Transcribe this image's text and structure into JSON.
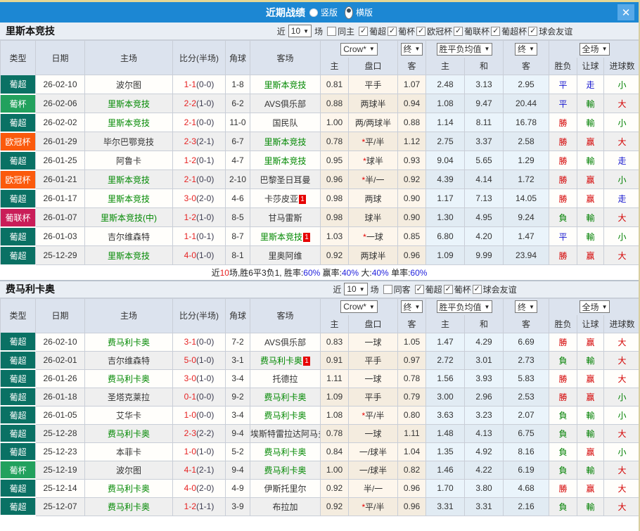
{
  "titlebar": {
    "title": "近期战绩",
    "radios": [
      {
        "label": "竖版",
        "selected": false
      },
      {
        "label": "横版",
        "selected": true
      }
    ],
    "close": "✕"
  },
  "filter_common": {
    "near": "近",
    "games": "10",
    "suffix": "场"
  },
  "columns": {
    "left": [
      "类型",
      "日期",
      "主场",
      "比分(半场)",
      "角球",
      "客场"
    ],
    "sub": [
      "主",
      "盘口",
      "客",
      "主",
      "和",
      "客",
      "胜负",
      "让球",
      "进球数"
    ],
    "selects": {
      "crow": "Crow*",
      "fin1": "终",
      "avg": "胜平负均值",
      "fin2": "终",
      "scope": "全场"
    }
  },
  "type_colors": {
    "葡超": "#0a7164",
    "葡杯": "#22a15d",
    "欧冠杯": "#fb5a0c",
    "葡联杯": "#c91d58"
  },
  "teams": [
    {
      "name": "里斯本竞技",
      "same_side": "同主",
      "leagues": [
        "葡超",
        "葡杯",
        "欧冠杯",
        "葡联杯",
        "葡超杯",
        "球会友谊"
      ],
      "rows": [
        {
          "type": "葡超",
          "date": "26-02-10",
          "home": "波尔图",
          "home_green": false,
          "score": "1-1",
          "half": "(0-0)",
          "corner": "1-8",
          "away": "里斯本竞技",
          "away_green": true,
          "away_badge": "",
          "h_home": "0.81",
          "star": "",
          "handicap": "平手",
          "h_away": "1.07",
          "e_home": "2.48",
          "e_draw": "3.13",
          "e_away": "2.95",
          "r1": "平",
          "r1c": "b",
          "r2": "走",
          "r2c": "b",
          "r3": "小",
          "r3c": "g"
        },
        {
          "type": "葡杯",
          "date": "26-02-06",
          "home": "里斯本竞技",
          "home_green": true,
          "score": "2-2",
          "half": "(1-0)",
          "corner": "6-2",
          "away": "AVS俱乐部",
          "away_green": false,
          "away_badge": "",
          "h_home": "0.88",
          "star": "",
          "handicap": "两球半",
          "h_away": "0.94",
          "e_home": "1.08",
          "e_draw": "9.47",
          "e_away": "20.44",
          "r1": "平",
          "r1c": "b",
          "r2": "輸",
          "r2c": "g",
          "r3": "大",
          "r3c": "r"
        },
        {
          "type": "葡超",
          "date": "26-02-02",
          "home": "里斯本竞技",
          "home_green": true,
          "score": "2-1",
          "half": "(0-0)",
          "corner": "11-0",
          "away": "国民队",
          "away_green": false,
          "away_badge": "",
          "h_home": "1.00",
          "star": "",
          "handicap": "两/两球半",
          "h_away": "0.88",
          "e_home": "1.14",
          "e_draw": "8.11",
          "e_away": "16.78",
          "r1": "勝",
          "r1c": "r",
          "r2": "輸",
          "r2c": "g",
          "r3": "小",
          "r3c": "g"
        },
        {
          "type": "欧冠杯",
          "date": "26-01-29",
          "home": "毕尔巴鄂竞技",
          "home_green": false,
          "score": "2-3",
          "half": "(2-1)",
          "corner": "6-7",
          "away": "里斯本竞技",
          "away_green": true,
          "away_badge": "",
          "h_home": "0.78",
          "star": "*",
          "handicap": "平/半",
          "h_away": "1.12",
          "e_home": "2.75",
          "e_draw": "3.37",
          "e_away": "2.58",
          "r1": "勝",
          "r1c": "r",
          "r2": "赢",
          "r2c": "r",
          "r3": "大",
          "r3c": "r"
        },
        {
          "type": "葡超",
          "date": "26-01-25",
          "home": "阿鲁卡",
          "home_green": false,
          "score": "1-2",
          "half": "(0-1)",
          "corner": "4-7",
          "away": "里斯本竞技",
          "away_green": true,
          "away_badge": "",
          "h_home": "0.95",
          "star": "*",
          "handicap": "球半",
          "h_away": "0.93",
          "e_home": "9.04",
          "e_draw": "5.65",
          "e_away": "1.29",
          "r1": "勝",
          "r1c": "r",
          "r2": "輸",
          "r2c": "g",
          "r3": "走",
          "r3c": "b"
        },
        {
          "type": "欧冠杯",
          "date": "26-01-21",
          "home": "里斯本竞技",
          "home_green": true,
          "score": "2-1",
          "half": "(0-0)",
          "corner": "2-10",
          "away": "巴黎圣日耳曼",
          "away_green": false,
          "away_badge": "",
          "h_home": "0.96",
          "star": "*",
          "handicap": "半/一",
          "h_away": "0.92",
          "e_home": "4.39",
          "e_draw": "4.14",
          "e_away": "1.72",
          "r1": "勝",
          "r1c": "r",
          "r2": "赢",
          "r2c": "r",
          "r3": "小",
          "r3c": "g"
        },
        {
          "type": "葡超",
          "date": "26-01-17",
          "home": "里斯本竞技",
          "home_green": true,
          "score": "3-0",
          "half": "(2-0)",
          "corner": "4-6",
          "away": "卡莎皮亚",
          "away_green": false,
          "away_badge": "1",
          "h_home": "0.98",
          "star": "",
          "handicap": "两球",
          "h_away": "0.90",
          "e_home": "1.17",
          "e_draw": "7.13",
          "e_away": "14.05",
          "r1": "勝",
          "r1c": "r",
          "r2": "赢",
          "r2c": "r",
          "r3": "走",
          "r3c": "b"
        },
        {
          "type": "葡联杯",
          "date": "26-01-07",
          "home": "里斯本竞技(中)",
          "home_green": true,
          "score": "1-2",
          "half": "(1-0)",
          "corner": "8-5",
          "away": "甘马雷斯",
          "away_green": false,
          "away_badge": "",
          "h_home": "0.98",
          "star": "",
          "handicap": "球半",
          "h_away": "0.90",
          "e_home": "1.30",
          "e_draw": "4.95",
          "e_away": "9.24",
          "r1": "負",
          "r1c": "g",
          "r2": "輸",
          "r2c": "g",
          "r3": "大",
          "r3c": "r"
        },
        {
          "type": "葡超",
          "date": "26-01-03",
          "home": "吉尔维森特",
          "home_green": false,
          "score": "1-1",
          "half": "(0-1)",
          "corner": "8-7",
          "away": "里斯本竞技",
          "away_green": true,
          "away_badge": "1",
          "h_home": "1.03",
          "star": "*",
          "handicap": "一球",
          "h_away": "0.85",
          "e_home": "6.80",
          "e_draw": "4.20",
          "e_away": "1.47",
          "r1": "平",
          "r1c": "b",
          "r2": "輸",
          "r2c": "g",
          "r3": "小",
          "r3c": "g"
        },
        {
          "type": "葡超",
          "date": "25-12-29",
          "home": "里斯本竞技",
          "home_green": true,
          "score": "4-0",
          "half": "(1-0)",
          "corner": "8-1",
          "away": "里奥阿维",
          "away_green": false,
          "away_badge": "",
          "h_home": "0.92",
          "star": "",
          "handicap": "两球半",
          "h_away": "0.96",
          "e_home": "1.09",
          "e_draw": "9.99",
          "e_away": "23.94",
          "r1": "勝",
          "r1c": "r",
          "r2": "赢",
          "r2c": "r",
          "r3": "大",
          "r3c": "r"
        }
      ],
      "summary": [
        {
          "t": "近",
          "c": "k"
        },
        {
          "t": "10",
          "c": "r"
        },
        {
          "t": "场,胜6平3负1, 胜率:",
          "c": "k"
        },
        {
          "t": "60%",
          "c": "b"
        },
        {
          "t": " 赢率:",
          "c": "k"
        },
        {
          "t": "40%",
          "c": "b"
        },
        {
          "t": " 大:",
          "c": "k"
        },
        {
          "t": "40%",
          "c": "b"
        },
        {
          "t": " 单率:",
          "c": "k"
        },
        {
          "t": "60%",
          "c": "b"
        }
      ]
    },
    {
      "name": "费马利卡奥",
      "same_side": "同客",
      "leagues": [
        "葡超",
        "葡杯",
        "球会友谊"
      ],
      "rows": [
        {
          "type": "葡超",
          "date": "26-02-10",
          "home": "费马利卡奥",
          "home_green": true,
          "score": "3-1",
          "half": "(0-0)",
          "corner": "7-2",
          "away": "AVS俱乐部",
          "away_green": false,
          "away_badge": "",
          "h_home": "0.83",
          "star": "",
          "handicap": "一球",
          "h_away": "1.05",
          "e_home": "1.47",
          "e_draw": "4.29",
          "e_away": "6.69",
          "r1": "勝",
          "r1c": "r",
          "r2": "赢",
          "r2c": "r",
          "r3": "大",
          "r3c": "r"
        },
        {
          "type": "葡超",
          "date": "26-02-01",
          "home": "吉尔维森特",
          "home_green": false,
          "score": "5-0",
          "half": "(1-0)",
          "corner": "3-1",
          "away": "费马利卡奥",
          "away_green": true,
          "away_badge": "1",
          "h_home": "0.91",
          "star": "",
          "handicap": "平手",
          "h_away": "0.97",
          "e_home": "2.72",
          "e_draw": "3.01",
          "e_away": "2.73",
          "r1": "負",
          "r1c": "g",
          "r2": "輸",
          "r2c": "g",
          "r3": "大",
          "r3c": "r"
        },
        {
          "type": "葡超",
          "date": "26-01-26",
          "home": "费马利卡奥",
          "home_green": true,
          "score": "3-0",
          "half": "(1-0)",
          "corner": "3-4",
          "away": "托德拉",
          "away_green": false,
          "away_badge": "",
          "h_home": "1.11",
          "star": "",
          "handicap": "一球",
          "h_away": "0.78",
          "e_home": "1.56",
          "e_draw": "3.93",
          "e_away": "5.83",
          "r1": "勝",
          "r1c": "r",
          "r2": "赢",
          "r2c": "r",
          "r3": "大",
          "r3c": "r"
        },
        {
          "type": "葡超",
          "date": "26-01-18",
          "home": "圣塔克莱拉",
          "home_green": false,
          "score": "0-1",
          "half": "(0-0)",
          "corner": "9-2",
          "away": "费马利卡奥",
          "away_green": true,
          "away_badge": "",
          "h_home": "1.09",
          "star": "",
          "handicap": "平手",
          "h_away": "0.79",
          "e_home": "3.00",
          "e_draw": "2.96",
          "e_away": "2.53",
          "r1": "勝",
          "r1c": "r",
          "r2": "赢",
          "r2c": "r",
          "r3": "小",
          "r3c": "g"
        },
        {
          "type": "葡超",
          "date": "26-01-05",
          "home": "艾华卡",
          "home_green": false,
          "score": "1-0",
          "half": "(0-0)",
          "corner": "3-4",
          "away": "费马利卡奥",
          "away_green": true,
          "away_badge": "",
          "h_home": "1.08",
          "star": "*",
          "handicap": "平/半",
          "h_away": "0.80",
          "e_home": "3.63",
          "e_draw": "3.23",
          "e_away": "2.07",
          "r1": "負",
          "r1c": "g",
          "r2": "輸",
          "r2c": "g",
          "r3": "小",
          "r3c": "g"
        },
        {
          "type": "葡超",
          "date": "25-12-28",
          "home": "费马利卡奥",
          "home_green": true,
          "score": "2-3",
          "half": "(2-2)",
          "corner": "9-4",
          "away": "埃斯特雷拉达阿马多拉",
          "away_green": false,
          "away_badge": "",
          "h_home": "0.78",
          "star": "",
          "handicap": "一球",
          "h_away": "1.11",
          "e_home": "1.48",
          "e_draw": "4.13",
          "e_away": "6.75",
          "r1": "負",
          "r1c": "g",
          "r2": "輸",
          "r2c": "g",
          "r3": "大",
          "r3c": "r"
        },
        {
          "type": "葡超",
          "date": "25-12-23",
          "home": "本菲卡",
          "home_green": false,
          "score": "1-0",
          "half": "(1-0)",
          "corner": "5-2",
          "away": "费马利卡奥",
          "away_green": true,
          "away_badge": "",
          "h_home": "0.84",
          "star": "",
          "handicap": "一/球半",
          "h_away": "1.04",
          "e_home": "1.35",
          "e_draw": "4.92",
          "e_away": "8.16",
          "r1": "負",
          "r1c": "g",
          "r2": "赢",
          "r2c": "r",
          "r3": "小",
          "r3c": "g"
        },
        {
          "type": "葡杯",
          "date": "25-12-19",
          "home": "波尔图",
          "home_green": false,
          "score": "4-1",
          "half": "(2-1)",
          "corner": "9-4",
          "away": "费马利卡奥",
          "away_green": true,
          "away_badge": "",
          "h_home": "1.00",
          "star": "",
          "handicap": "一/球半",
          "h_away": "0.82",
          "e_home": "1.46",
          "e_draw": "4.22",
          "e_away": "6.19",
          "r1": "負",
          "r1c": "g",
          "r2": "輸",
          "r2c": "g",
          "r3": "大",
          "r3c": "r"
        },
        {
          "type": "葡超",
          "date": "25-12-14",
          "home": "费马利卡奥",
          "home_green": true,
          "score": "4-0",
          "half": "(2-0)",
          "corner": "4-9",
          "away": "伊斯托里尔",
          "away_green": false,
          "away_badge": "",
          "h_home": "0.92",
          "star": "",
          "handicap": "半/一",
          "h_away": "0.96",
          "e_home": "1.70",
          "e_draw": "3.80",
          "e_away": "4.68",
          "r1": "勝",
          "r1c": "r",
          "r2": "赢",
          "r2c": "r",
          "r3": "大",
          "r3c": "r"
        },
        {
          "type": "葡超",
          "date": "25-12-07",
          "home": "费马利卡奥",
          "home_green": true,
          "score": "1-2",
          "half": "(1-1)",
          "corner": "3-9",
          "away": "布拉加",
          "away_green": false,
          "away_badge": "",
          "h_home": "0.92",
          "star": "*",
          "handicap": "平/半",
          "h_away": "0.96",
          "e_home": "3.31",
          "e_draw": "3.31",
          "e_away": "2.16",
          "r1": "負",
          "r1c": "g",
          "r2": "輸",
          "r2c": "g",
          "r3": "大",
          "r3c": "r"
        }
      ],
      "summary": null
    }
  ]
}
